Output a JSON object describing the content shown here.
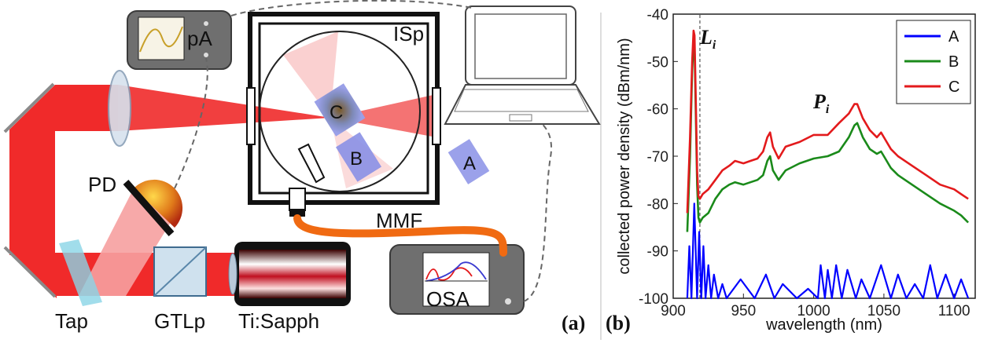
{
  "panel_a": {
    "panel_label": "(a)",
    "labels": {
      "pa": "pA",
      "isp": "ISp",
      "pd": "PD",
      "mmf": "MMF",
      "osa": "OSA",
      "tap": "Tap",
      "gtlp": "GTLp",
      "tisapph": "Ti:Sapph",
      "sample_a": "A",
      "sample_b": "B",
      "sample_c": "C"
    },
    "colors": {
      "beam": "#f02a2a",
      "beam_faint": "#f7a0a0",
      "cable": "#f06a12",
      "device_body": "#6f6f6f",
      "sample": "#8a90e6"
    }
  },
  "panel_b": {
    "panel_label": "(b)",
    "annotations": {
      "laser_line": "L",
      "laser_sub": "i",
      "plasma": "P",
      "plasma_sub": "i"
    }
  },
  "chart_data": {
    "type": "line",
    "xlabel": "wavelength (nm)",
    "ylabel": "collected power density (dBm/nm)",
    "xlim": [
      900,
      1115
    ],
    "ylim": [
      -100,
      -40
    ],
    "xticks": [
      900,
      950,
      1000,
      1050,
      1100
    ],
    "yticks": [
      -40,
      -50,
      -60,
      -70,
      -80,
      -90,
      -100
    ],
    "grid": false,
    "legend_position": "top-right",
    "series": [
      {
        "name": "A",
        "color": "#0000ff",
        "style": "spiky noise floor near -100",
        "x": [
          910,
          911.5,
          913,
          915,
          917,
          918.5,
          920,
          921.5,
          923,
          925,
          927,
          929,
          932,
          935,
          938,
          948,
          958,
          966,
          972,
          978,
          988,
          996,
          1003,
          1005,
          1008,
          1010,
          1013,
          1016,
          1020,
          1024,
          1030,
          1034,
          1040,
          1048,
          1055,
          1060,
          1066,
          1072,
          1078,
          1083,
          1088,
          1094,
          1100,
          1105,
          1110
        ],
        "y": [
          -100,
          -89,
          -100,
          -80,
          -100,
          -86,
          -100,
          -89,
          -100,
          -93,
          -100,
          -95,
          -100,
          -97,
          -100,
          -96,
          -100,
          -95,
          -100,
          -97,
          -100,
          -98,
          -100,
          -93,
          -100,
          -94,
          -100,
          -93,
          -100,
          -94,
          -100,
          -96,
          -100,
          -93,
          -100,
          -95,
          -100,
          -97,
          -100,
          -93,
          -100,
          -95,
          -100,
          -96,
          -100
        ]
      },
      {
        "name": "B",
        "color": "#1a8a1a",
        "x": [
          910,
          912,
          913.5,
          914.5,
          915.2,
          916,
          917,
          918,
          919,
          921,
          925,
          930,
          935,
          940,
          944,
          950,
          955,
          960,
          964,
          967,
          969,
          971,
          975,
          980,
          990,
          1000,
          1010,
          1018,
          1025,
          1029,
          1031,
          1035,
          1040,
          1045,
          1048,
          1050,
          1055,
          1060,
          1070,
          1080,
          1090,
          1100,
          1105,
          1110
        ],
        "y": [
          -86,
          -70,
          -52,
          -46,
          -47,
          -60,
          -76,
          -83,
          -84,
          -83,
          -82,
          -79,
          -77,
          -76,
          -75.5,
          -76,
          -75.5,
          -75,
          -74,
          -71,
          -70,
          -73,
          -75,
          -73,
          -71.5,
          -70.5,
          -70,
          -69,
          -66,
          -63.5,
          -63,
          -66,
          -68.5,
          -69.5,
          -69,
          -70,
          -72.5,
          -74,
          -76,
          -78,
          -80,
          -81.5,
          -82.5,
          -84
        ]
      },
      {
        "name": "C",
        "color": "#e31a1c",
        "x": [
          910,
          912,
          913.5,
          914.5,
          915.2,
          916,
          917,
          918,
          919,
          921,
          925,
          930,
          935,
          940,
          944,
          950,
          955,
          960,
          964,
          967,
          969,
          971,
          975,
          980,
          990,
          1000,
          1010,
          1018,
          1025,
          1029,
          1031,
          1035,
          1040,
          1045,
          1048,
          1050,
          1055,
          1060,
          1070,
          1080,
          1090,
          1100,
          1105,
          1110
        ],
        "y": [
          -82,
          -66,
          -50,
          -43.5,
          -44.5,
          -57,
          -73,
          -78.5,
          -79,
          -78,
          -77,
          -75,
          -73,
          -72,
          -71,
          -71.5,
          -71,
          -70.5,
          -69,
          -66,
          -65,
          -68,
          -70.5,
          -68,
          -67,
          -65.5,
          -65.5,
          -63,
          -61,
          -59,
          -59,
          -62,
          -64.5,
          -66,
          -65,
          -66,
          -68.5,
          -70,
          -72,
          -74,
          -76,
          -77,
          -78,
          -79
        ]
      }
    ]
  }
}
